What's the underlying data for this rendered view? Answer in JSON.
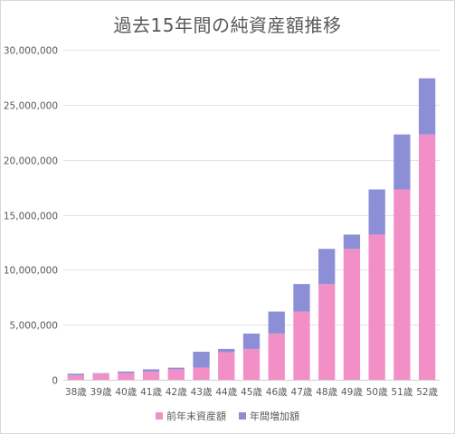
{
  "chart_data": {
    "type": "bar",
    "stacked": true,
    "title": "過去15年間の純資産額推移",
    "categories": [
      "38歳",
      "39歳",
      "40歳",
      "41歳",
      "42歳",
      "43歳",
      "44歳",
      "45歳",
      "46歳",
      "47歳",
      "48歳",
      "49歳",
      "50歳",
      "51歳",
      "52歳"
    ],
    "series": [
      {
        "name": "前年末資産額",
        "color": "#f28fc7",
        "values": [
          400000,
          550000,
          600000,
          750000,
          950000,
          1100000,
          2500000,
          2800000,
          4200000,
          6200000,
          8700000,
          11900000,
          13200000,
          17300000,
          22300000
        ]
      },
      {
        "name": "年間増加額",
        "color": "#8c8fd6",
        "values": [
          150000,
          50000,
          150000,
          200000,
          150000,
          1450000,
          300000,
          1400000,
          2000000,
          2500000,
          3200000,
          1300000,
          4100000,
          5000000,
          5100000
        ]
      }
    ],
    "ylim": [
      0,
      30000000
    ],
    "yticks": [
      "0",
      "5,000,000",
      "10,000,000",
      "15,000,000",
      "20,000,000",
      "25,000,000",
      "30,000,000"
    ],
    "ytick_values": [
      0,
      5000000,
      10000000,
      15000000,
      20000000,
      25000000,
      30000000
    ],
    "grid": true,
    "legend_position": "bottom",
    "xlabel": "",
    "ylabel": ""
  }
}
